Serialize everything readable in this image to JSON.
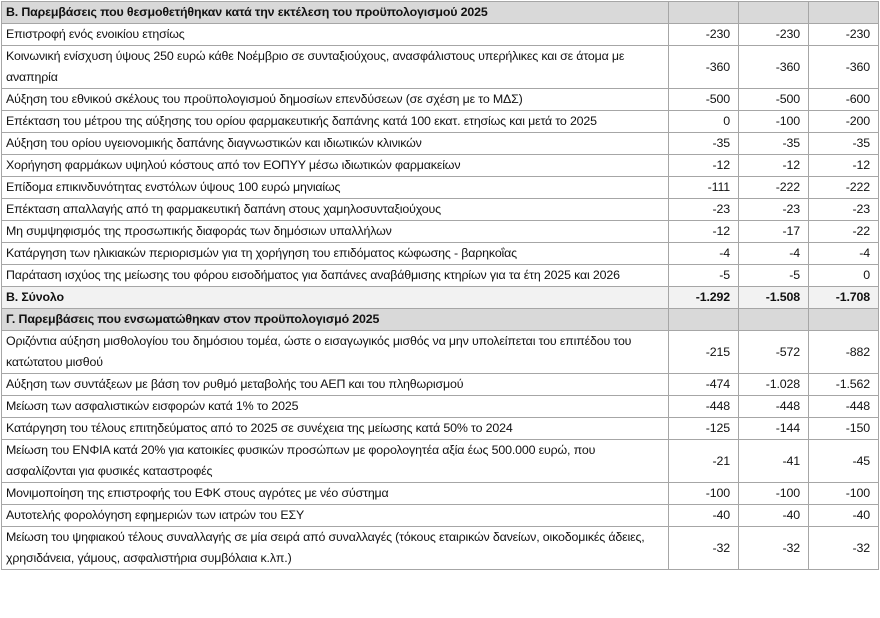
{
  "sections": [
    {
      "title": "Β. Παρεμβάσεις που θεσμοθετήθηκαν κατά την εκτέλεση του προϋπολογισμού 2025",
      "rows": [
        {
          "label": "Επιστροφή ενός ενοικίου ετησίως",
          "values": [
            "-230",
            "-230",
            "-230"
          ]
        },
        {
          "label": "Κοινωνική ενίσχυση ύψους 250 ευρώ κάθε Νοέμβριο σε συνταξιούχους, ανασφάλιστους υπερήλικες και σε άτομα με αναπηρία",
          "values": [
            "-360",
            "-360",
            "-360"
          ]
        },
        {
          "label": "Αύξηση του εθνικού σκέλους του προϋπολογισμού δημοσίων επενδύσεων (σε σχέση με το ΜΔΣ)",
          "values": [
            "-500",
            "-500",
            "-600"
          ]
        },
        {
          "label": "Επέκταση του μέτρου της αύξησης του ορίου φαρμακευτικής δαπάνης κατά 100 εκατ. ετησίως και μετά το 2025",
          "values": [
            "0",
            "-100",
            "-200"
          ]
        },
        {
          "label": "Αύξηση του ορίου υγειονομικής δαπάνης διαγνωστικών και ιδιωτικών κλινικών",
          "values": [
            "-35",
            "-35",
            "-35"
          ]
        },
        {
          "label": "Χορήγηση φαρμάκων υψηλού κόστους από τον ΕΟΠΥΥ μέσω ιδιωτικών φαρμακείων",
          "values": [
            "-12",
            "-12",
            "-12"
          ]
        },
        {
          "label": "Επίδομα επικινδυνότητας ενστόλων ύψους 100 ευρώ μηνιαίως",
          "values": [
            "-111",
            "-222",
            "-222"
          ]
        },
        {
          "label": "Επέκταση απαλλαγής από τη φαρμακευτική δαπάνη στους χαμηλοσυνταξιούχους",
          "values": [
            "-23",
            "-23",
            "-23"
          ]
        },
        {
          "label": "Μη συμψηφισμός της προσωπικής διαφοράς των δημόσιων υπαλλήλων",
          "values": [
            "-12",
            "-17",
            "-22"
          ]
        },
        {
          "label": "Κατάργηση των ηλικιακών περιορισμών για τη χορήγηση του επιδόματος κώφωσης - βαρηκοΐας",
          "values": [
            "-4",
            "-4",
            "-4"
          ]
        },
        {
          "label": "Παράταση ισχύος της μείωσης του φόρου εισοδήματος για δαπάνες αναβάθμισης κτηρίων για τα έτη 2025 και 2026",
          "values": [
            "-5",
            "-5",
            "0"
          ]
        }
      ],
      "total": {
        "label": "Β. Σύνολο",
        "values": [
          "-1.292",
          "-1.508",
          "-1.708"
        ]
      }
    },
    {
      "title": "Γ. Παρεμβάσεις που ενσωματώθηκαν στον προϋπολογισμό 2025",
      "rows": [
        {
          "label": "Οριζόντια αύξηση μισθολογίου του δημόσιου τομέα, ώστε ο εισαγωγικός μισθός να μην υπολείπεται του επιπέδου του κατώτατου μισθού",
          "values": [
            "-215",
            "-572",
            "-882"
          ]
        },
        {
          "label": "Αύξηση των συντάξεων με βάση τον ρυθμό μεταβολής του ΑΕΠ και του πληθωρισμού",
          "values": [
            "-474",
            "-1.028",
            "-1.562"
          ]
        },
        {
          "label": "Μείωση των ασφαλιστικών εισφορών κατά 1% το 2025",
          "values": [
            "-448",
            "-448",
            "-448"
          ]
        },
        {
          "label": "Κατάργηση του τέλους επιτηδεύματος από το 2025 σε συνέχεια της μείωσης κατά 50% το 2024",
          "values": [
            "-125",
            "-144",
            "-150"
          ]
        },
        {
          "label": "Μείωση του ΕΝΦΙΑ κατά 20% για κατοικίες φυσικών προσώπων με φορολογητέα αξία έως 500.000 ευρώ, που ασφαλίζονται για φυσικές καταστροφές",
          "values": [
            "-21",
            "-41",
            "-45"
          ]
        },
        {
          "label": "Μονιμοποίηση της επιστροφής του ΕΦΚ στους αγρότες με νέο σύστημα",
          "values": [
            "-100",
            "-100",
            "-100"
          ]
        },
        {
          "label": "Αυτοτελής φορολόγηση εφημεριών των ιατρών του ΕΣΥ",
          "values": [
            "-40",
            "-40",
            "-40"
          ]
        },
        {
          "label": "Μείωση του ψηφιακού τέλους συναλλαγής σε μία σειρά από συναλλαγές (τόκους εταιρικών δανείων, οικοδομικές άδειες, χρησιδάνεια, γάμους, ασφαλιστήρια συμβόλαια κ.λπ.)",
          "values": [
            "-32",
            "-32",
            "-32"
          ]
        }
      ]
    }
  ]
}
